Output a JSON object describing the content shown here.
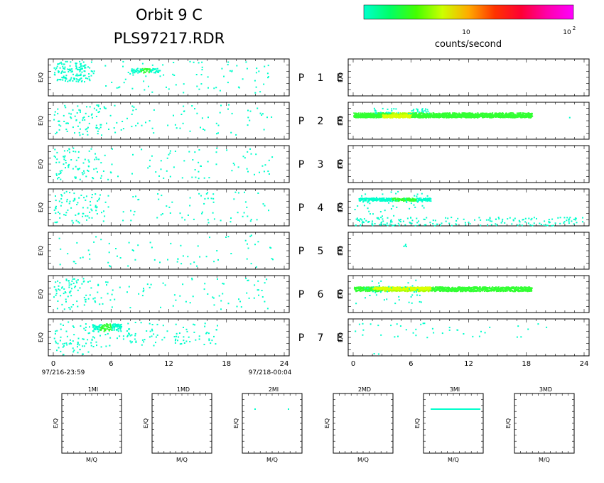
{
  "header": {
    "title_line1": "Orbit  9  C",
    "title_line2": "PLS97217.RDR"
  },
  "colorbar": {
    "stops": [
      "#00ffcc",
      "#00ff66",
      "#44ff00",
      "#ccff00",
      "#ffaa00",
      "#ff3300",
      "#ff0033",
      "#ff00aa",
      "#ff00ff"
    ],
    "tick_labels": [
      "10",
      "10"
    ],
    "tick_sup": "2",
    "label": "counts/second"
  },
  "panels": {
    "ylabel": "E/Q",
    "rows": [
      {
        "p": "P",
        "n": "1",
        "e": "E"
      },
      {
        "p": "P",
        "n": "2",
        "e": "E"
      },
      {
        "p": "P",
        "n": "3",
        "e": "E"
      },
      {
        "p": "P",
        "n": "4",
        "e": "E"
      },
      {
        "p": "P",
        "n": "5",
        "e": "E"
      },
      {
        "p": "P",
        "n": "6",
        "e": "E"
      },
      {
        "p": "P",
        "n": "7",
        "e": "E"
      }
    ],
    "x_ticks": [
      "0",
      "6",
      "12",
      "18",
      "24"
    ],
    "start_time": "97/216-23:59",
    "end_time": "97/218-00:04"
  },
  "mass_panels": {
    "xlabel": "M/Q",
    "ylabel": "E/Q",
    "titles": [
      "1MI",
      "1MD",
      "2MI",
      "2MD",
      "3MI",
      "3MD"
    ]
  },
  "chart_data": [
    {
      "type": "heatmap",
      "description_title": "",
      "xlabel": "",
      "ylabel": "E/Q",
      "xlim": [
        0,
        24
      ],
      "x_ticks": [
        0,
        6,
        12,
        18,
        24
      ],
      "colorscale": "log counts/second, 10 to 100",
      "left_column_ion_panels": [
        {
          "name": "P 1",
          "activity": "dense 0-4, band near 8-11, sparse to 23"
        },
        {
          "name": "P 2",
          "activity": "scattered 0-22"
        },
        {
          "name": "P 3",
          "activity": "scattered 0-23"
        },
        {
          "name": "P 4",
          "activity": "scattered 0-22"
        },
        {
          "name": "P 5",
          "activity": "sparse 0-23"
        },
        {
          "name": "P 6",
          "activity": "scattered 0-22"
        },
        {
          "name": "P 7",
          "activity": "intense band 4-7, scattered 0-17"
        }
      ],
      "right_column_electron_panels": [
        {
          "name": "E 1",
          "activity": "none"
        },
        {
          "name": "E 2",
          "activity": "continuous band 0-18.5, peak near 4-5"
        },
        {
          "name": "E 3",
          "activity": "none"
        },
        {
          "name": "E 4",
          "activity": "band 0-8, scattered low energy to 24"
        },
        {
          "name": "E 5",
          "activity": "isolated near 5"
        },
        {
          "name": "E 6",
          "activity": "continuous band 0-18.5, peak near 3-8"
        },
        {
          "name": "E 7",
          "activity": "sparse 0-21"
        }
      ]
    },
    {
      "type": "scatter",
      "panels": [
        "1MI",
        "1MD",
        "2MI",
        "2MD",
        "3MI",
        "3MD"
      ],
      "xlabel": "M/Q",
      "ylabel": "E/Q",
      "notes": "2MI: two isolated points; 3MI: horizontal line of counts; others empty"
    }
  ]
}
